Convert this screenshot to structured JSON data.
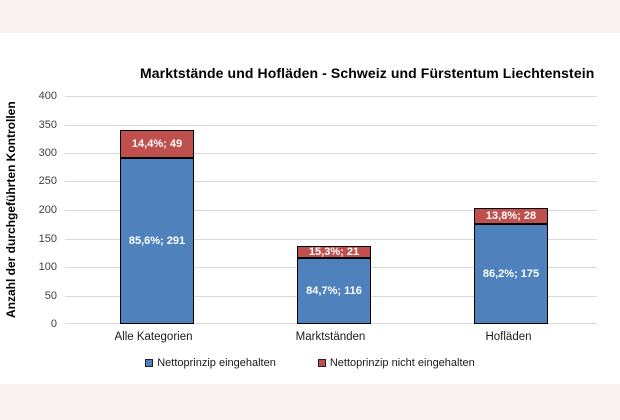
{
  "page": {
    "background_color": "#faf3f1",
    "panel_color": "#ffffff",
    "gridline_color": "#d9d9d9",
    "bar_border_color": "#000000"
  },
  "chart_data": {
    "type": "bar",
    "stacked": true,
    "title": "Marktstände und Hofläden - Schweiz und Fürstentum Liechtenstein",
    "ylabel": "Anzahl der durchgeführten Kontrollen",
    "xlabel": "",
    "categories": [
      "Alle Kategorien",
      "Marktständen",
      "Hofläden"
    ],
    "series": [
      {
        "name": "Nettoprinzip eingehalten",
        "color": "#4f81bd",
        "values": [
          291,
          116,
          175
        ],
        "labels": [
          "85,6%; 291",
          "84,7%; 116",
          "86,2%; 175"
        ]
      },
      {
        "name": "Nettoprinzip nicht eingehalten",
        "color": "#c0504d",
        "values": [
          49,
          21,
          28
        ],
        "labels": [
          "14,4%; 49",
          "15,3%; 21",
          "13,8%; 28"
        ]
      }
    ],
    "totals": [
      340,
      137,
      203
    ],
    "ylim": [
      0,
      400
    ],
    "yticks": [
      0,
      50,
      100,
      150,
      200,
      250,
      300,
      350,
      400
    ],
    "grid": true,
    "legend_position": "bottom"
  }
}
